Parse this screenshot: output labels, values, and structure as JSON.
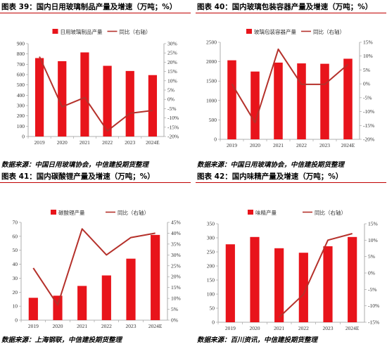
{
  "panels": [
    {
      "title": "图表 39：国内日用玻璃制品产量及增速（万吨；%）",
      "source": "数据来源：中国日用玻璃协会，中信建投期货整理",
      "chart_data": {
        "type": "bar+line",
        "categories": [
          "2019",
          "2020",
          "2021",
          "2022",
          "2023",
          "2024E"
        ],
        "series": [
          {
            "name": "日用玻璃制品产量",
            "type": "bar",
            "axis": "left",
            "values": [
              760,
              730,
              815,
              685,
              635,
              595
            ]
          },
          {
            "name": "同比（右轴）",
            "type": "line",
            "axis": "right",
            "values": [
              23,
              -4,
              1,
              -17,
              -7.5,
              -6
            ]
          }
        ],
        "ylim_left": [
          0,
          900
        ],
        "yticks_left": [
          0,
          100,
          200,
          300,
          400,
          500,
          600,
          700,
          800,
          900
        ],
        "ylim_right": [
          -20,
          30
        ],
        "yticks_right": [
          -20,
          -15,
          -10,
          -5,
          0,
          5,
          10,
          15,
          20,
          25,
          30
        ],
        "right_tick_labels": [
          "-20%",
          "-15%",
          "-10%",
          "-5%",
          "0%",
          "5%",
          "10%",
          "15%",
          "20%",
          "25%",
          "30%"
        ],
        "legend": "top-center",
        "bar_color": "#e8141b",
        "line_color": "#b5312b"
      }
    },
    {
      "title": "图表 40：国内玻璃包装容器产量及增速（万吨；%）",
      "source": "数据来源：中国日用玻璃协会，中信建投期货整理",
      "chart_data": {
        "type": "bar+line",
        "categories": [
          "2019",
          "2020",
          "2021",
          "2022",
          "2023",
          "2024E"
        ],
        "series": [
          {
            "name": "玻璃包装容器产量",
            "type": "bar",
            "axis": "left",
            "values": [
              2035,
              1745,
              1975,
              1955,
              1945,
              2075
            ]
          },
          {
            "name": "同比（右轴）",
            "type": "line",
            "axis": "right",
            "values": [
              0,
              -14,
              12.5,
              -0.2,
              -0.2,
              7
            ]
          }
        ],
        "ylim_left": [
          0,
          2500
        ],
        "yticks_left": [
          0,
          500,
          1000,
          1500,
          2000,
          2500
        ],
        "ylim_right": [
          -20,
          15
        ],
        "yticks_right": [
          -20,
          -15,
          -10,
          -5,
          0,
          5,
          10,
          15
        ],
        "right_tick_labels": [
          "-20%",
          "-15%",
          "-10%",
          "-5%",
          "0%",
          "5%",
          "10%",
          "15%"
        ],
        "legend": "top-center",
        "bar_color": "#e8141b",
        "line_color": "#b5312b"
      }
    },
    {
      "title": "图表 41：国内碳酸锂产量及增速（万吨；%）",
      "source": "数据来源：上海钢联，中信建投期货整理",
      "chart_data": {
        "type": "bar+line",
        "categories": [
          "2019",
          "2020",
          "2021",
          "2022",
          "2023",
          "2024E"
        ],
        "series": [
          {
            "name": "碳酸锂产量",
            "type": "bar",
            "axis": "left",
            "values": [
              16,
              17.5,
              24.5,
              32,
              44,
              61
            ]
          },
          {
            "name": "同比（右轴）",
            "type": "line",
            "axis": "right",
            "values": [
              24,
              7,
              42,
              30,
              38,
              40
            ]
          }
        ],
        "ylim_left": [
          0,
          70
        ],
        "yticks_left": [
          0,
          10,
          20,
          30,
          40,
          50,
          60,
          70
        ],
        "ylim_right": [
          0,
          45
        ],
        "yticks_right": [
          0,
          5,
          10,
          15,
          20,
          25,
          30,
          35,
          40,
          45
        ],
        "right_tick_labels": [
          "0%",
          "5%",
          "10%",
          "15%",
          "20%",
          "25%",
          "30%",
          "35%",
          "40%",
          "45%"
        ],
        "legend": "top-center",
        "bar_color": "#e8141b",
        "line_color": "#b5312b"
      }
    },
    {
      "title": "图表 42：国内味精产量及增速（万吨；%）",
      "source": "数据来源：百川资讯，中信建投期货整理",
      "chart_data": {
        "type": "bar+line",
        "categories": [
          "2019",
          "2020",
          "2021",
          "2022",
          "2023",
          "2024E"
        ],
        "series": [
          {
            "name": "味精产量",
            "type": "bar",
            "axis": "left",
            "values": [
              277,
              303,
              263,
              247,
              270,
              303
            ]
          },
          {
            "name": "同比（右轴）",
            "type": "line",
            "axis": "right",
            "values": [
              null,
              null,
              -13.5,
              -6.5,
              10,
              12
            ]
          }
        ],
        "ylim_left": [
          0,
          350
        ],
        "yticks_left": [
          0,
          50,
          100,
          150,
          200,
          250,
          300,
          350
        ],
        "ylim_right": [
          -15,
          15
        ],
        "yticks_right": [
          -15,
          -10,
          -5,
          0,
          5,
          10,
          15
        ],
        "right_tick_labels": [
          "-15%",
          "-10%",
          "-5%",
          "0%",
          "5%",
          "10%",
          "15%"
        ],
        "legend": "top-center",
        "bar_color": "#e8141b",
        "line_color": "#b5312b"
      }
    }
  ]
}
